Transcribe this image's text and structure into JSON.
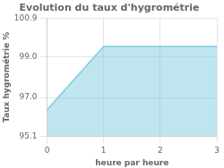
{
  "chart_data": {
    "type": "line",
    "title": "Evolution du taux d'hygrométrie",
    "xlabel": "heure par heure",
    "ylabel": "Taux hygrométrie %",
    "x": [
      0,
      1,
      2,
      3
    ],
    "values": [
      96.4,
      99.5,
      99.5,
      99.5
    ],
    "color": "#7fcce0",
    "xlim": [
      0,
      3
    ],
    "ylim": [
      95.1,
      100.9
    ],
    "xticks": [
      0,
      1,
      2,
      3
    ],
    "yticks": [
      95.1,
      {
        "value": 97.0,
        "label": "97.0"
      },
      {
        "value": 99.0,
        "label": "99.0"
      },
      100.9
    ],
    "grid": true
  }
}
